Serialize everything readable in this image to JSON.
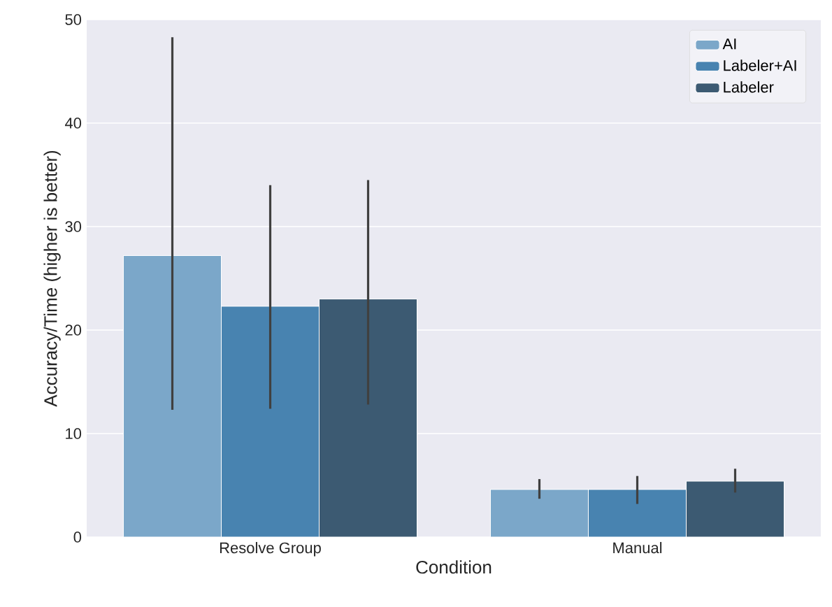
{
  "chart_data": {
    "type": "bar",
    "xlabel": "Condition",
    "ylabel": "Accuracy/Time (higher is better)",
    "categories": [
      "Resolve Group",
      "Manual"
    ],
    "series": [
      {
        "name": "AI",
        "color": "#7ba7c9",
        "values": [
          27.2,
          4.6
        ],
        "errors": [
          [
            12.3,
            48.3
          ],
          [
            3.7,
            5.6
          ]
        ]
      },
      {
        "name": "Labeler+AI",
        "color": "#4883b0",
        "values": [
          22.3,
          4.6
        ],
        "errors": [
          [
            12.4,
            34.0
          ],
          [
            3.2,
            5.9
          ]
        ]
      },
      {
        "name": "Labeler",
        "color": "#3c5a72",
        "values": [
          23.0,
          5.4
        ],
        "errors": [
          [
            12.8,
            34.5
          ],
          [
            4.3,
            6.6
          ]
        ]
      }
    ],
    "ylim": [
      0,
      50
    ],
    "yticks": [
      0,
      10,
      20,
      30,
      40,
      50
    ],
    "grid": "y",
    "legend": "top right"
  }
}
